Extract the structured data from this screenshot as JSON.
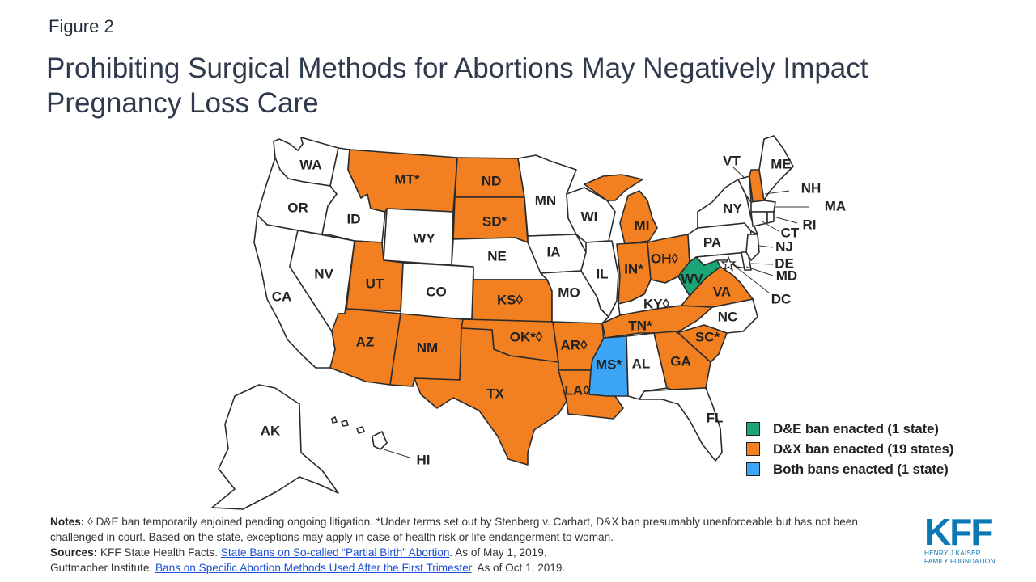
{
  "figure_label": "Figure 2",
  "title": "Prohibiting Surgical Methods for Abortions May Negatively Impact Pregnancy Loss Care",
  "colors": {
    "no_ban": "#ffffff",
    "de_ban": "#1aa577",
    "dx_ban": "#f28020",
    "both_bans": "#3da5f5"
  },
  "states": {
    "WA": {
      "label": "WA",
      "status": "none"
    },
    "OR": {
      "label": "OR",
      "status": "none"
    },
    "CA": {
      "label": "CA",
      "status": "none"
    },
    "NV": {
      "label": "NV",
      "status": "none"
    },
    "ID": {
      "label": "ID",
      "status": "none"
    },
    "MT": {
      "label": "MT*",
      "status": "dx"
    },
    "WY": {
      "label": "WY",
      "status": "none"
    },
    "UT": {
      "label": "UT",
      "status": "dx"
    },
    "CO": {
      "label": "CO",
      "status": "none"
    },
    "AZ": {
      "label": "AZ",
      "status": "dx"
    },
    "NM": {
      "label": "NM",
      "status": "dx"
    },
    "ND": {
      "label": "ND",
      "status": "dx"
    },
    "SD": {
      "label": "SD*",
      "status": "dx"
    },
    "NE": {
      "label": "NE",
      "status": "none"
    },
    "KS": {
      "label": "KS◊",
      "status": "dx"
    },
    "OK": {
      "label": "OK*◊",
      "status": "dx"
    },
    "TX": {
      "label": "TX",
      "status": "dx"
    },
    "MN": {
      "label": "MN",
      "status": "none"
    },
    "IA": {
      "label": "IA",
      "status": "none"
    },
    "MO": {
      "label": "MO",
      "status": "none"
    },
    "AR": {
      "label": "AR◊",
      "status": "dx"
    },
    "LA": {
      "label": "LA◊",
      "status": "dx"
    },
    "WI": {
      "label": "WI",
      "status": "none"
    },
    "IL": {
      "label": "IL",
      "status": "none"
    },
    "MI": {
      "label": "MI",
      "status": "dx"
    },
    "IN": {
      "label": "IN*",
      "status": "dx"
    },
    "OH": {
      "label": "OH◊",
      "status": "dx"
    },
    "KY": {
      "label": "KY◊",
      "status": "none"
    },
    "TN": {
      "label": "TN*",
      "status": "dx"
    },
    "MS": {
      "label": "MS*",
      "status": "both"
    },
    "AL": {
      "label": "AL",
      "status": "none"
    },
    "GA": {
      "label": "GA",
      "status": "dx"
    },
    "FL": {
      "label": "FL",
      "status": "none"
    },
    "SC": {
      "label": "SC*",
      "status": "dx"
    },
    "NC": {
      "label": "NC",
      "status": "none"
    },
    "VA": {
      "label": "VA",
      "status": "dx"
    },
    "WV": {
      "label": "WV",
      "status": "de"
    },
    "PA": {
      "label": "PA",
      "status": "none"
    },
    "NY": {
      "label": "NY",
      "status": "none"
    },
    "VT": {
      "label": "VT",
      "status": "none"
    },
    "NH": {
      "label": "NH",
      "status": "dx"
    },
    "ME": {
      "label": "ME",
      "status": "none"
    },
    "MA": {
      "label": "MA",
      "status": "none"
    },
    "RI": {
      "label": "RI",
      "status": "none"
    },
    "CT": {
      "label": "CT",
      "status": "none"
    },
    "NJ": {
      "label": "NJ",
      "status": "none"
    },
    "DE": {
      "label": "DE",
      "status": "none"
    },
    "MD": {
      "label": "MD",
      "status": "none"
    },
    "DC": {
      "label": "DC",
      "status": "none"
    },
    "AK": {
      "label": "AK",
      "status": "none"
    },
    "HI": {
      "label": "HI",
      "status": "none"
    }
  },
  "legend": [
    {
      "label": "D&E ban enacted (1 state)",
      "color": "#1aa577"
    },
    {
      "label": "D&X ban enacted (19 states)",
      "color": "#f28020"
    },
    {
      "label": "Both bans enacted (1 state)",
      "color": "#3da5f5"
    }
  ],
  "notes": {
    "notes_label": "Notes:",
    "notes_text": "◊ D&E ban temporarily enjoined pending ongoing litigation. *Under terms set out by Stenberg v. Carhart, D&X ban presumably unenforceable but has not been challenged in court. Based on the state, exceptions may apply in case of health risk or life endangerment to woman.",
    "sources_label": "Sources:",
    "source1_prefix": "KFF State Health Facts.",
    "source1_link": "State Bans on So-called “Partial Birth” Abortion",
    "source1_suffix": ". As of May 1, 2019.",
    "source2_prefix": "Guttmacher Institute.",
    "source2_link": "Bans on Specific Abortion Methods Used After the First Trimester",
    "source2_suffix": ". As of Oct 1, 2019."
  },
  "logo": {
    "mark": "KFF",
    "line1": "HENRY J KAISER",
    "line2": "FAMILY FOUNDATION"
  }
}
